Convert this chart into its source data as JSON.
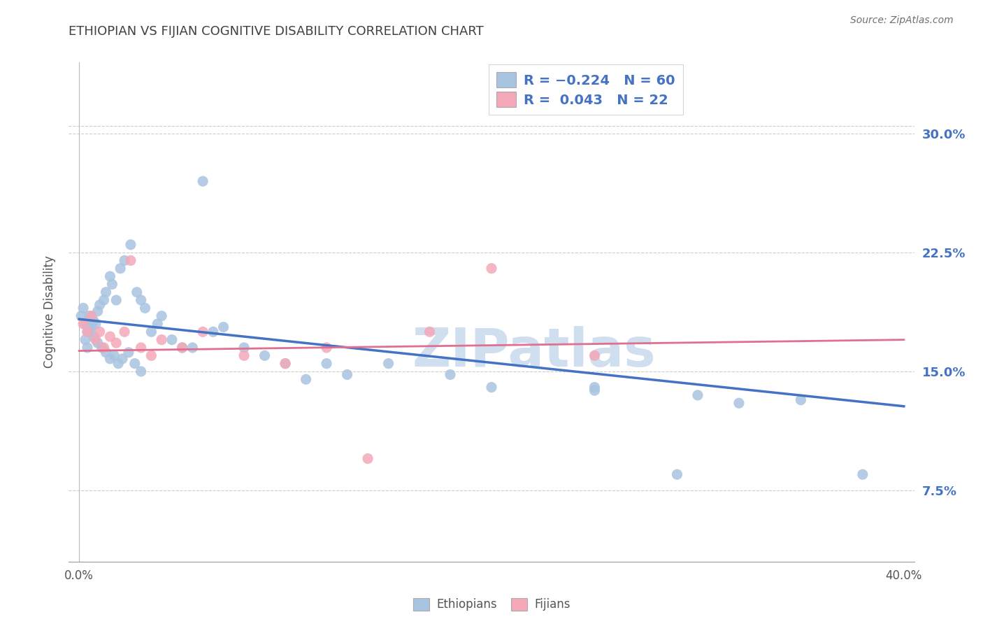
{
  "title": "ETHIOPIAN VS FIJIAN COGNITIVE DISABILITY CORRELATION CHART",
  "source": "Source: ZipAtlas.com",
  "ylabel": "Cognitive Disability",
  "ytick_values": [
    0.075,
    0.15,
    0.225,
    0.3
  ],
  "xlim": [
    -0.005,
    0.405
  ],
  "ylim": [
    0.03,
    0.345
  ],
  "ethiopian_color": "#A8C4E0",
  "fijian_color": "#F4A8B8",
  "ethiopian_line_color": "#4472C4",
  "fijian_line_color": "#E07090",
  "ethiopian_R": -0.224,
  "fijian_R": 0.043,
  "ethiopian_N": 60,
  "fijian_N": 22,
  "background_color": "#FFFFFF",
  "grid_color": "#CCCCCC",
  "title_color": "#404040",
  "watermark_color": "#D0DFF0",
  "eth_line_start_y": 0.183,
  "eth_line_end_y": 0.128,
  "fij_line_start_y": 0.163,
  "fij_line_end_y": 0.17,
  "eth_points_x": [
    0.001,
    0.002,
    0.003,
    0.004,
    0.005,
    0.006,
    0.007,
    0.008,
    0.009,
    0.01,
    0.012,
    0.013,
    0.015,
    0.016,
    0.018,
    0.02,
    0.022,
    0.025,
    0.028,
    0.03,
    0.032,
    0.035,
    0.038,
    0.04,
    0.045,
    0.05,
    0.055,
    0.06,
    0.065,
    0.07,
    0.08,
    0.09,
    0.1,
    0.11,
    0.12,
    0.13,
    0.003,
    0.004,
    0.005,
    0.007,
    0.009,
    0.011,
    0.013,
    0.015,
    0.017,
    0.019,
    0.021,
    0.024,
    0.027,
    0.03,
    0.15,
    0.18,
    0.2,
    0.25,
    0.3,
    0.35,
    0.38,
    0.25,
    0.32,
    0.29
  ],
  "eth_points_y": [
    0.185,
    0.19,
    0.18,
    0.175,
    0.185,
    0.178,
    0.182,
    0.18,
    0.188,
    0.192,
    0.195,
    0.2,
    0.21,
    0.205,
    0.195,
    0.215,
    0.22,
    0.23,
    0.2,
    0.195,
    0.19,
    0.175,
    0.18,
    0.185,
    0.17,
    0.165,
    0.165,
    0.27,
    0.175,
    0.178,
    0.165,
    0.16,
    0.155,
    0.145,
    0.155,
    0.148,
    0.17,
    0.165,
    0.175,
    0.172,
    0.168,
    0.165,
    0.162,
    0.158,
    0.16,
    0.155,
    0.158,
    0.162,
    0.155,
    0.15,
    0.155,
    0.148,
    0.14,
    0.138,
    0.135,
    0.132,
    0.085,
    0.14,
    0.13,
    0.085
  ],
  "fij_points_x": [
    0.002,
    0.004,
    0.006,
    0.008,
    0.01,
    0.012,
    0.015,
    0.018,
    0.022,
    0.025,
    0.03,
    0.035,
    0.04,
    0.05,
    0.06,
    0.08,
    0.1,
    0.12,
    0.14,
    0.17,
    0.2,
    0.25
  ],
  "fij_points_y": [
    0.18,
    0.175,
    0.185,
    0.17,
    0.175,
    0.165,
    0.172,
    0.168,
    0.175,
    0.22,
    0.165,
    0.16,
    0.17,
    0.165,
    0.175,
    0.16,
    0.155,
    0.165,
    0.095,
    0.175,
    0.215,
    0.16
  ]
}
